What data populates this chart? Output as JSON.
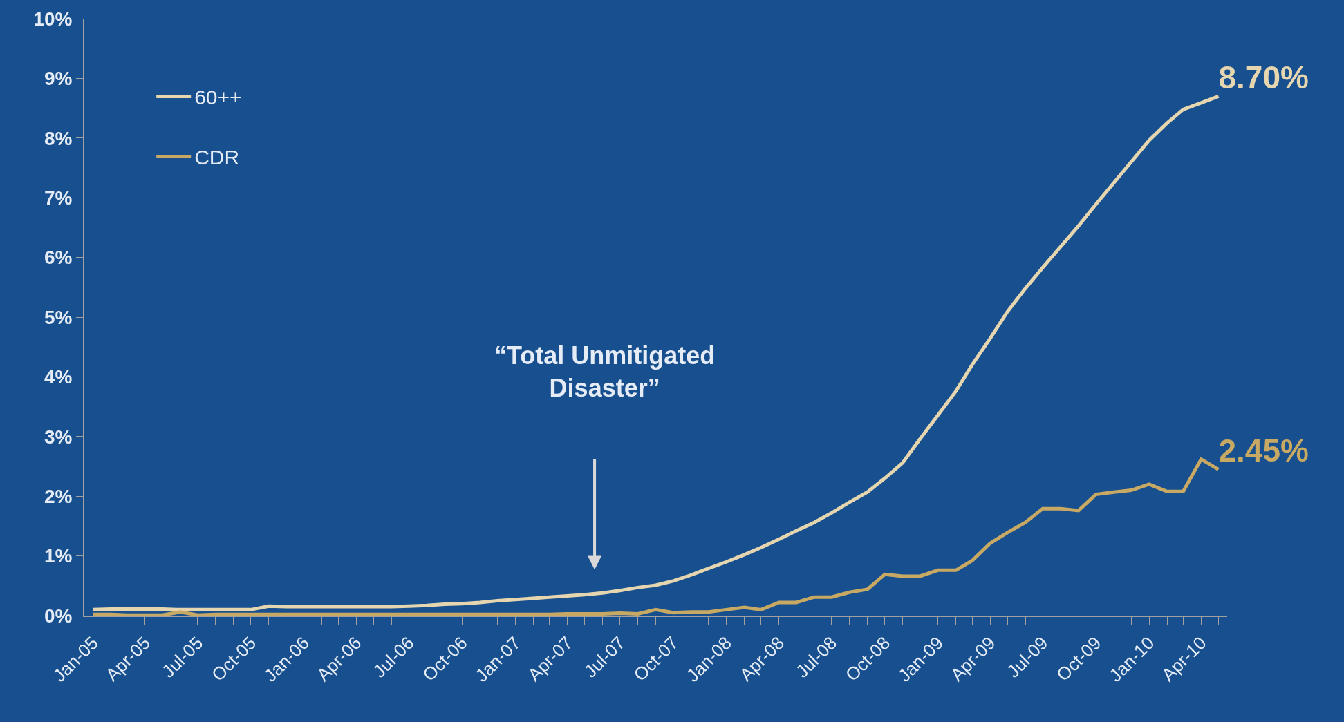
{
  "chart_data": {
    "type": "line",
    "x": [
      "2005-01",
      "2005-02",
      "2005-03",
      "2005-04",
      "2005-05",
      "2005-06",
      "2005-07",
      "2005-08",
      "2005-09",
      "2005-10",
      "2005-11",
      "2005-12",
      "2006-01",
      "2006-02",
      "2006-03",
      "2006-04",
      "2006-05",
      "2006-06",
      "2006-07",
      "2006-08",
      "2006-09",
      "2006-10",
      "2006-11",
      "2006-12",
      "2007-01",
      "2007-02",
      "2007-03",
      "2007-04",
      "2007-05",
      "2007-06",
      "2007-07",
      "2007-08",
      "2007-09",
      "2007-10",
      "2007-11",
      "2007-12",
      "2008-01",
      "2008-02",
      "2008-03",
      "2008-04",
      "2008-05",
      "2008-06",
      "2008-07",
      "2008-08",
      "2008-09",
      "2008-10",
      "2008-11",
      "2008-12",
      "2009-01",
      "2009-02",
      "2009-03",
      "2009-04",
      "2009-05",
      "2009-06",
      "2009-07",
      "2009-08",
      "2009-09",
      "2009-10",
      "2009-11",
      "2009-12",
      "2010-01",
      "2010-02",
      "2010-03",
      "2010-04",
      "2010-05"
    ],
    "series": [
      {
        "name": "60++",
        "color": "#e6d6b0",
        "values": [
          0.1,
          0.11,
          0.11,
          0.11,
          0.11,
          0.1,
          0.1,
          0.1,
          0.1,
          0.1,
          0.16,
          0.15,
          0.15,
          0.15,
          0.15,
          0.15,
          0.15,
          0.15,
          0.16,
          0.17,
          0.19,
          0.2,
          0.22,
          0.25,
          0.27,
          0.29,
          0.31,
          0.33,
          0.35,
          0.38,
          0.42,
          0.47,
          0.51,
          0.58,
          0.68,
          0.79,
          0.9,
          1.02,
          1.14,
          1.28,
          1.42,
          1.56,
          1.72,
          1.9,
          2.07,
          2.3,
          2.56,
          2.96,
          3.36,
          3.76,
          4.2,
          4.64,
          5.09,
          5.48,
          5.83,
          6.18,
          6.53,
          6.89,
          7.25,
          7.6,
          7.96,
          8.25,
          8.48,
          8.59,
          8.7
        ],
        "value_labels": [
          null,
          null,
          null,
          null,
          null,
          null,
          null,
          null,
          null,
          null,
          null,
          null,
          null,
          null,
          null,
          null,
          null,
          null,
          null,
          null,
          null,
          null,
          null,
          null,
          null,
          null,
          null,
          null,
          null,
          null,
          null,
          null,
          null,
          null,
          null,
          null,
          null,
          null,
          null,
          null,
          null,
          null,
          null,
          null,
          null,
          null,
          null,
          null,
          null,
          null,
          null,
          null,
          null,
          null,
          null,
          null,
          null,
          null,
          null,
          null,
          null,
          null,
          null,
          null,
          "8.70%"
        ]
      },
      {
        "name": "CDR",
        "color": "#c8a964",
        "values": [
          0.02,
          0.02,
          0.01,
          0.01,
          0.01,
          0.06,
          0.01,
          0.02,
          0.02,
          0.02,
          0.02,
          0.02,
          0.02,
          0.02,
          0.02,
          0.02,
          0.02,
          0.02,
          0.02,
          0.02,
          0.02,
          0.02,
          0.02,
          0.02,
          0.02,
          0.02,
          0.02,
          0.03,
          0.03,
          0.03,
          0.04,
          0.03,
          0.1,
          0.05,
          0.06,
          0.06,
          0.1,
          0.14,
          0.1,
          0.22,
          0.22,
          0.31,
          0.31,
          0.39,
          0.44,
          0.69,
          0.66,
          0.66,
          0.76,
          0.76,
          0.92,
          1.21,
          1.39,
          1.56,
          1.79,
          1.79,
          1.76,
          2.03,
          2.07,
          2.1,
          2.2,
          2.08,
          2.08,
          2.62,
          2.45
        ],
        "value_labels": [
          null,
          null,
          null,
          null,
          null,
          null,
          null,
          null,
          null,
          null,
          null,
          null,
          null,
          null,
          null,
          null,
          null,
          null,
          null,
          null,
          null,
          null,
          null,
          null,
          null,
          null,
          null,
          null,
          null,
          null,
          null,
          null,
          null,
          null,
          null,
          null,
          null,
          null,
          null,
          null,
          null,
          null,
          null,
          null,
          null,
          null,
          null,
          null,
          null,
          null,
          null,
          null,
          null,
          null,
          null,
          null,
          null,
          null,
          null,
          null,
          null,
          null,
          null,
          null,
          "2.45%"
        ]
      }
    ],
    "xlim": [
      "2004-12-17",
      "2010-05-16"
    ],
    "xticks": [
      {
        "value": "2005-01",
        "label": "Jan-05"
      },
      {
        "value": "2005-02",
        "label": null
      },
      {
        "value": "2005-03",
        "label": null
      },
      {
        "value": "2005-04",
        "label": "Apr-05"
      },
      {
        "value": "2005-05",
        "label": null
      },
      {
        "value": "2005-06",
        "label": null
      },
      {
        "value": "2005-07",
        "label": "Jul-05"
      },
      {
        "value": "2005-08",
        "label": null
      },
      {
        "value": "2005-09",
        "label": null
      },
      {
        "value": "2005-10",
        "label": "Oct-05"
      },
      {
        "value": "2005-11",
        "label": null
      },
      {
        "value": "2005-12",
        "label": null
      },
      {
        "value": "2006-01",
        "label": "Jan-06"
      },
      {
        "value": "2006-02",
        "label": null
      },
      {
        "value": "2006-03",
        "label": null
      },
      {
        "value": "2006-04",
        "label": "Apr-06"
      },
      {
        "value": "2006-05",
        "label": null
      },
      {
        "value": "2006-06",
        "label": null
      },
      {
        "value": "2006-07",
        "label": "Jul-06"
      },
      {
        "value": "2006-08",
        "label": null
      },
      {
        "value": "2006-09",
        "label": null
      },
      {
        "value": "2006-10",
        "label": "Oct-06"
      },
      {
        "value": "2006-11",
        "label": null
      },
      {
        "value": "2006-12",
        "label": null
      },
      {
        "value": "2007-01",
        "label": "Jan-07"
      },
      {
        "value": "2007-02",
        "label": null
      },
      {
        "value": "2007-03",
        "label": null
      },
      {
        "value": "2007-04",
        "label": "Apr-07"
      },
      {
        "value": "2007-05",
        "label": null
      },
      {
        "value": "2007-06",
        "label": null
      },
      {
        "value": "2007-07",
        "label": "Jul-07"
      },
      {
        "value": "2007-08",
        "label": null
      },
      {
        "value": "2007-09",
        "label": null
      },
      {
        "value": "2007-10",
        "label": "Oct-07"
      },
      {
        "value": "2007-11",
        "label": null
      },
      {
        "value": "2007-12",
        "label": null
      },
      {
        "value": "2008-01",
        "label": "Jan-08"
      },
      {
        "value": "2008-02",
        "label": null
      },
      {
        "value": "2008-03",
        "label": null
      },
      {
        "value": "2008-04",
        "label": "Apr-08"
      },
      {
        "value": "2008-05",
        "label": null
      },
      {
        "value": "2008-06",
        "label": null
      },
      {
        "value": "2008-07",
        "label": "Jul-08"
      },
      {
        "value": "2008-08",
        "label": null
      },
      {
        "value": "2008-09",
        "label": null
      },
      {
        "value": "2008-10",
        "label": "Oct-08"
      },
      {
        "value": "2008-11",
        "label": null
      },
      {
        "value": "2008-12",
        "label": null
      },
      {
        "value": "2009-01",
        "label": "Jan-09"
      },
      {
        "value": "2009-02",
        "label": null
      },
      {
        "value": "2009-03",
        "label": null
      },
      {
        "value": "2009-04",
        "label": "Apr-09"
      },
      {
        "value": "2009-05",
        "label": null
      },
      {
        "value": "2009-06",
        "label": null
      },
      {
        "value": "2009-07",
        "label": "Jul-09"
      },
      {
        "value": "2009-08",
        "label": null
      },
      {
        "value": "2009-09",
        "label": null
      },
      {
        "value": "2009-10",
        "label": "Oct-09"
      },
      {
        "value": "2009-11",
        "label": null
      },
      {
        "value": "2009-12",
        "label": null
      },
      {
        "value": "2010-01",
        "label": "Jan-10"
      },
      {
        "value": "2010-02",
        "label": null
      },
      {
        "value": "2010-03",
        "label": null
      },
      {
        "value": "2010-04",
        "label": "Apr-10"
      },
      {
        "value": "2010-05",
        "label": null
      }
    ],
    "ylim": [
      0,
      10
    ],
    "yticks": [
      {
        "value": 0,
        "label": "0%"
      },
      {
        "value": 1,
        "label": "1%"
      },
      {
        "value": 2,
        "label": "2%"
      },
      {
        "value": 3,
        "label": "3%"
      },
      {
        "value": 4,
        "label": "4%"
      },
      {
        "value": 5,
        "label": "5%"
      },
      {
        "value": 6,
        "label": "6%"
      },
      {
        "value": 7,
        "label": "7%"
      },
      {
        "value": 8,
        "label": "8%"
      },
      {
        "value": 9,
        "label": "9%"
      },
      {
        "value": 10,
        "label": "10%"
      }
    ],
    "annotations": [
      "“Total Unmitigated\nDisaster”"
    ],
    "legend": "top left",
    "grid": false,
    "marker": "none",
    "line_style": "solid"
  }
}
